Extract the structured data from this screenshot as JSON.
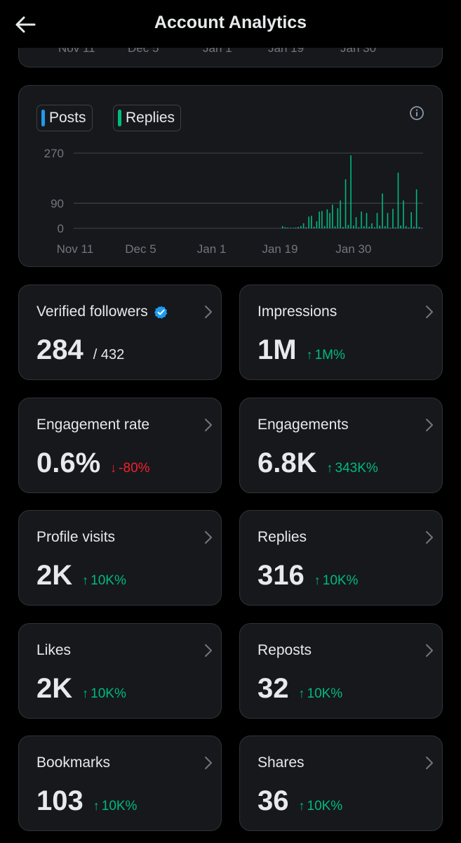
{
  "header": {
    "title": "Account Analytics"
  },
  "previous_chart": {
    "x_ticks": [
      "Nov 11",
      "Dec 5",
      "Jan 1",
      "Jan 19",
      "Jan 30"
    ]
  },
  "chart_data": {
    "type": "bar",
    "legend": [
      "Posts",
      "Replies"
    ],
    "series": [
      {
        "name": "Posts",
        "color": "#1d9bf0",
        "values": [
          0,
          0,
          0,
          0,
          0,
          0,
          0,
          0,
          0,
          0,
          0,
          0,
          0,
          0,
          0,
          0,
          0,
          0,
          0,
          0,
          0,
          0,
          0,
          0,
          0,
          0,
          0,
          0,
          0,
          0,
          0,
          0,
          0,
          0,
          0,
          0,
          0,
          0,
          0,
          0,
          0,
          0,
          0,
          0,
          0,
          0,
          0,
          0,
          0,
          0,
          0,
          0,
          0,
          0,
          0,
          0,
          0,
          0,
          0,
          0,
          0,
          0,
          0,
          0,
          0,
          0,
          0,
          0,
          0,
          0,
          0,
          0,
          0,
          0,
          0,
          0,
          0,
          0,
          0,
          1,
          2,
          1,
          1,
          1,
          1,
          2,
          1,
          1,
          1,
          1,
          2,
          1,
          1,
          1,
          2,
          2,
          1,
          1,
          2,
          2,
          1,
          1,
          2,
          2,
          1,
          1,
          2,
          1,
          2,
          2,
          1,
          1,
          2,
          2,
          1,
          1,
          2,
          1,
          2,
          2,
          1,
          2,
          1,
          1,
          2,
          1,
          1,
          1,
          2,
          1,
          2,
          2,
          2
        ]
      },
      {
        "name": "Replies",
        "color": "#00ba7c",
        "values": [
          0,
          0,
          0,
          0,
          0,
          0,
          0,
          0,
          0,
          0,
          0,
          0,
          0,
          0,
          0,
          0,
          0,
          0,
          0,
          0,
          0,
          0,
          0,
          0,
          0,
          0,
          0,
          0,
          0,
          0,
          0,
          0,
          0,
          0,
          0,
          0,
          0,
          0,
          0,
          0,
          0,
          0,
          0,
          0,
          0,
          0,
          0,
          0,
          0,
          0,
          0,
          0,
          0,
          0,
          0,
          0,
          0,
          0,
          0,
          0,
          0,
          0,
          0,
          0,
          0,
          0,
          0,
          0,
          0,
          0,
          0,
          0,
          0,
          0,
          0,
          0,
          0,
          0,
          0,
          8,
          4,
          3,
          2,
          2,
          3,
          5,
          8,
          18,
          4,
          42,
          45,
          6,
          25,
          60,
          62,
          8,
          68,
          55,
          85,
          7,
          72,
          100,
          5,
          176,
          12,
          262,
          10,
          40,
          4,
          60,
          8,
          55,
          6,
          18,
          4,
          55,
          10,
          125,
          8,
          55,
          2,
          70,
          4,
          200,
          10,
          100,
          8,
          3,
          58,
          6,
          140,
          5,
          0
        ]
      }
    ],
    "y_ticks": [
      0,
      90,
      270
    ],
    "ylim": [
      0,
      300
    ],
    "x_tick_labels": [
      "Nov 11",
      "Dec 5",
      "Jan 1",
      "Jan 19",
      "Jan 30"
    ],
    "x_tick_index": [
      0,
      25,
      52,
      78,
      106
    ],
    "grid": true
  },
  "stats": [
    {
      "label": "Verified followers",
      "value": "284",
      "sub": "/ 432",
      "verified": true
    },
    {
      "label": "Impressions",
      "value": "1M",
      "change": "1M%",
      "direction": "up"
    },
    {
      "label": "Engagement rate",
      "value": "0.6%",
      "change": "-80%",
      "direction": "down"
    },
    {
      "label": "Engagements",
      "value": "6.8K",
      "change": "343K%",
      "direction": "up"
    },
    {
      "label": "Profile visits",
      "value": "2K",
      "change": "10K%",
      "direction": "up"
    },
    {
      "label": "Replies",
      "value": "316",
      "change": "10K%",
      "direction": "up"
    },
    {
      "label": "Likes",
      "value": "2K",
      "change": "10K%",
      "direction": "up"
    },
    {
      "label": "Reposts",
      "value": "32",
      "change": "10K%",
      "direction": "up"
    },
    {
      "label": "Bookmarks",
      "value": "103",
      "change": "10K%",
      "direction": "up"
    },
    {
      "label": "Shares",
      "value": "36",
      "change": "10K%",
      "direction": "up"
    }
  ],
  "icons": {
    "back": "arrow-left-icon",
    "info": "info-icon",
    "verified": "verified-badge-icon",
    "chevron": "chevron-right-icon"
  },
  "colors": {
    "up": "#00ba7c",
    "down": "#f4212e",
    "verified": "#1d9bf0"
  }
}
